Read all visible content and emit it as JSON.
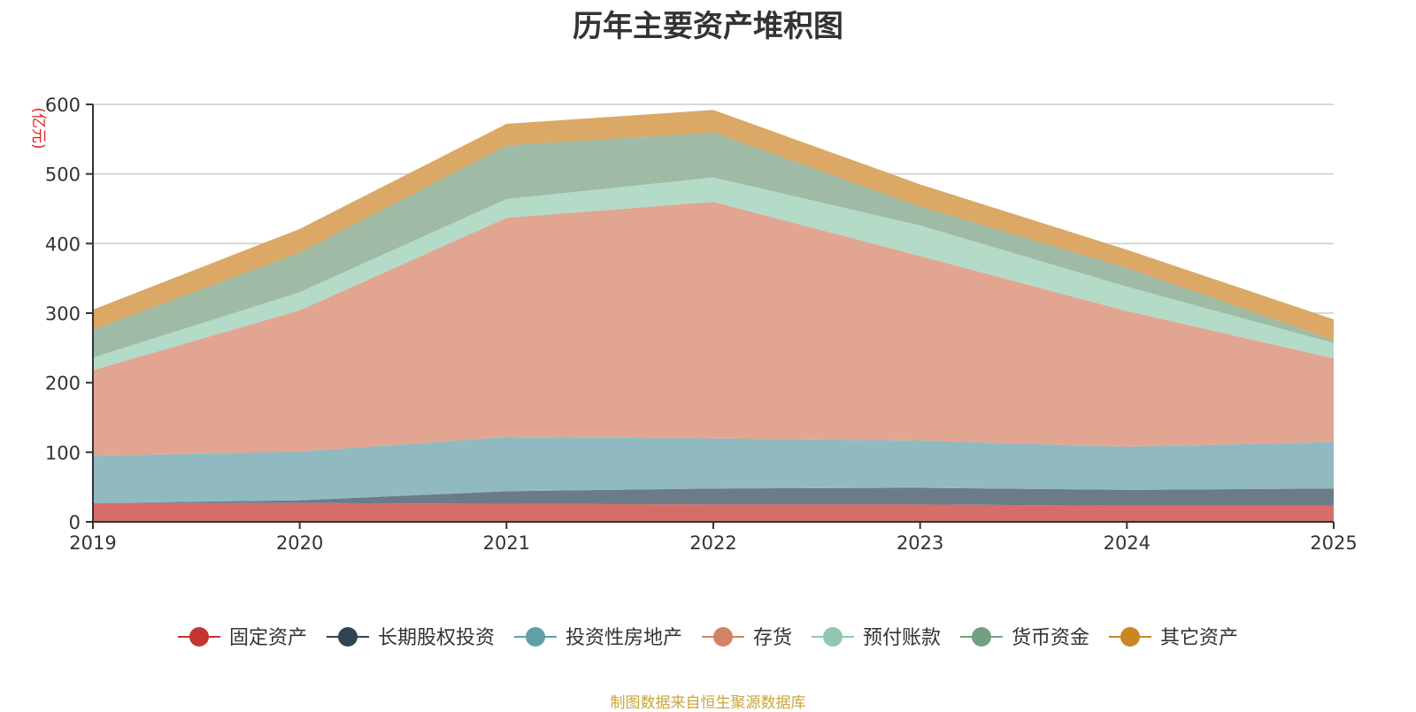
{
  "chart_data": {
    "type": "area",
    "stacked": true,
    "title": "历年主要资产堆积图",
    "unit": "(亿元)",
    "source": "制图数据来自恒生聚源数据库",
    "x": [
      "2019",
      "2020",
      "2021",
      "2022",
      "2023",
      "2024",
      "2025"
    ],
    "ylim": [
      0,
      600
    ],
    "yticks": [
      0,
      100,
      200,
      300,
      400,
      500,
      600
    ],
    "grid": true,
    "legend_position": "bottom",
    "series": [
      {
        "name": "固定资产",
        "color": "#c23531",
        "area_color": "#d66d69",
        "values": [
          27,
          27,
          26,
          25,
          25,
          23,
          23
        ]
      },
      {
        "name": "长期股权投资",
        "color": "#2f4554",
        "area_color": "#6c7c87",
        "values": [
          0,
          4,
          18,
          23,
          24,
          23,
          25
        ]
      },
      {
        "name": "投资性房地产",
        "color": "#61a0a8",
        "area_color": "#90bac0",
        "values": [
          68,
          70,
          78,
          72,
          68,
          62,
          67
        ]
      },
      {
        "name": "存货",
        "color": "#d48265",
        "area_color": "#e2a592",
        "values": [
          123,
          203,
          315,
          340,
          265,
          195,
          120
        ]
      },
      {
        "name": "预付账款",
        "color": "#91c7ae",
        "area_color": "#b3dbc7",
        "values": [
          18,
          26,
          27,
          35,
          44,
          35,
          22
        ]
      },
      {
        "name": "货币资金",
        "color": "#749f83",
        "area_color": "#9fbaa5",
        "values": [
          40,
          57,
          77,
          65,
          27,
          27,
          4
        ]
      },
      {
        "name": "其它资产",
        "color": "#ca8622",
        "area_color": "#dba865",
        "values": [
          29,
          34,
          31,
          32,
          32,
          26,
          30
        ]
      }
    ]
  }
}
